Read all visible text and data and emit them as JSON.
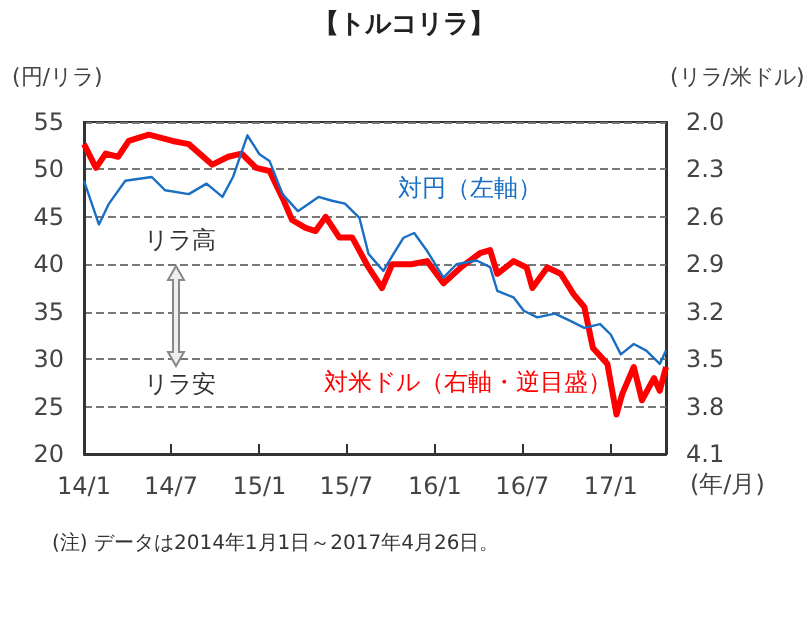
{
  "chart_data": {
    "type": "line",
    "title": "【トルコリラ】",
    "ylabel": "(円/リラ)",
    "y2label": "(リラ/米ドル)",
    "xlabel": "(年/月)",
    "annotations": [
      "リラ高",
      "リラ安",
      "(注) データは2014年1月1日～2017年4月26日。"
    ],
    "xlim": [
      "2014-01-01",
      "2017-04-26"
    ],
    "xticks": [
      {
        "value": "2014-01-01",
        "label": "14/1"
      },
      {
        "value": "2014-07-01",
        "label": "14/7"
      },
      {
        "value": "2015-01-01",
        "label": "15/1"
      },
      {
        "value": "2015-07-01",
        "label": "15/7"
      },
      {
        "value": "2016-01-01",
        "label": "16/1"
      },
      {
        "value": "2016-07-01",
        "label": "16/7"
      },
      {
        "value": "2017-01-01",
        "label": "17/1"
      }
    ],
    "ylim": [
      20,
      55
    ],
    "yticks": [
      20,
      25,
      30,
      35,
      40,
      45,
      50,
      55
    ],
    "y2lim": [
      4.1,
      2.0
    ],
    "y2ticks": [
      {
        "value": 2.0,
        "label": "2.0"
      },
      2.3,
      2.6,
      2.9,
      3.2,
      3.5,
      3.8,
      4.1
    ],
    "grid": "y",
    "legend": false,
    "marker": "none",
    "line_style": "solid",
    "series": [
      {
        "name": "対円（左軸）",
        "color": "#1a6fc4",
        "x": [
          "2014-01-01",
          "2014-02-01",
          "2014-02-22",
          "2014-03-28",
          "2014-05-22",
          "2014-06-19",
          "2014-08-07",
          "2014-09-13",
          "2014-10-16",
          "2014-11-07",
          "2014-12-07",
          "2015-01-01",
          "2015-01-22",
          "2015-02-18",
          "2015-03-22",
          "2015-05-04",
          "2015-06-01",
          "2015-06-28",
          "2015-07-28",
          "2015-08-16",
          "2015-09-16",
          "2015-10-07",
          "2015-10-28",
          "2015-11-19",
          "2015-12-16",
          "2016-01-19",
          "2016-02-15",
          "2016-03-28",
          "2016-04-25",
          "2016-05-10",
          "2016-06-13",
          "2016-07-04",
          "2016-08-01",
          "2016-09-07",
          "2016-10-10",
          "2016-11-07",
          "2016-12-10",
          "2017-01-01",
          "2017-01-22",
          "2017-02-18",
          "2017-03-16",
          "2017-04-13",
          "2017-04-26"
        ],
        "values": [
          48.8,
          44.2,
          46.4,
          48.8,
          49.2,
          47.8,
          47.4,
          48.5,
          47.1,
          49.2,
          53.6,
          51.6,
          50.9,
          47.4,
          45.6,
          47.1,
          46.7,
          46.4,
          44.9,
          41.1,
          39.3,
          41.1,
          42.8,
          43.3,
          41.4,
          38.6,
          40.0,
          40.4,
          39.7,
          37.2,
          36.5,
          35.1,
          34.4,
          34.8,
          34.0,
          33.3,
          33.7,
          32.6,
          30.5,
          31.6,
          30.9,
          29.5,
          30.9
        ]
      },
      {
        "name": "対米ドル（右軸・逆目盛）",
        "color": "#ff0000",
        "axis": "y2",
        "x": [
          "2014-01-01",
          "2014-01-26",
          "2014-02-15",
          "2014-03-13",
          "2014-04-04",
          "2014-05-16",
          "2014-07-04",
          "2014-08-07",
          "2014-09-25",
          "2014-10-28",
          "2014-11-25",
          "2014-12-25",
          "2015-01-22",
          "2015-02-18",
          "2015-03-10",
          "2015-04-07",
          "2015-04-28",
          "2015-05-19",
          "2015-06-16",
          "2015-07-13",
          "2015-08-16",
          "2015-09-13",
          "2015-10-04",
          "2015-11-13",
          "2015-12-16",
          "2016-01-19",
          "2016-02-24",
          "2016-04-04",
          "2016-04-25",
          "2016-05-10",
          "2016-06-13",
          "2016-07-10",
          "2016-07-22",
          "2016-08-22",
          "2016-09-19",
          "2016-10-16",
          "2016-11-07",
          "2016-11-25",
          "2016-12-25",
          "2017-01-13",
          "2017-01-25",
          "2017-02-18",
          "2017-03-07",
          "2017-04-01",
          "2017-04-13",
          "2017-04-26"
        ],
        "values": [
          2.14,
          2.29,
          2.2,
          2.22,
          2.12,
          2.08,
          2.12,
          2.14,
          2.27,
          2.22,
          2.2,
          2.29,
          2.31,
          2.48,
          2.62,
          2.67,
          2.69,
          2.6,
          2.73,
          2.73,
          2.92,
          3.05,
          2.9,
          2.9,
          2.88,
          3.02,
          2.92,
          2.83,
          2.81,
          2.96,
          2.88,
          2.92,
          3.05,
          2.92,
          2.96,
          3.09,
          3.17,
          3.43,
          3.53,
          3.85,
          3.72,
          3.55,
          3.76,
          3.62,
          3.7,
          3.55
        ]
      }
    ]
  }
}
